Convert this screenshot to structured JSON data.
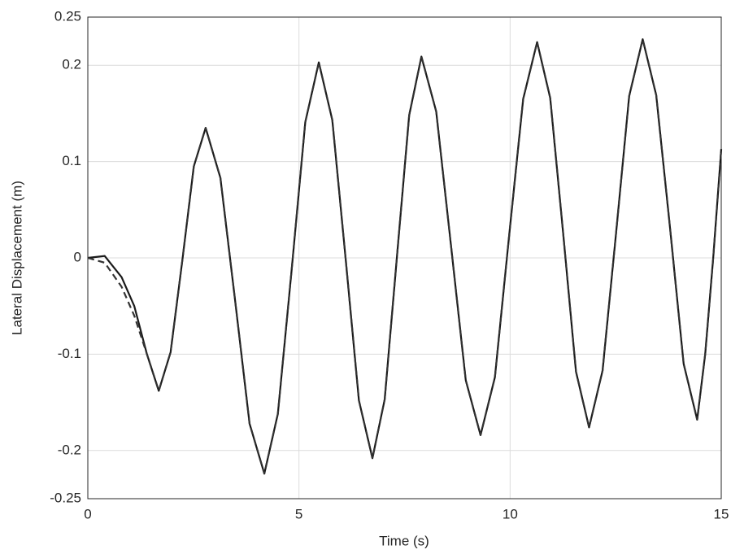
{
  "chart_data": {
    "type": "line",
    "x_label": "Time (s)",
    "y_label": "Lateral Displacement (m)",
    "x": [
      0,
      0.4,
      0.8,
      1.1,
      1.4,
      1.68,
      1.96,
      2.24,
      2.51,
      2.79,
      3.14,
      3.49,
      3.83,
      4.18,
      4.5,
      4.83,
      5.15,
      5.47,
      5.79,
      6.11,
      6.42,
      6.74,
      7.03,
      7.32,
      7.61,
      7.9,
      8.25,
      8.6,
      8.95,
      9.3,
      9.64,
      9.97,
      10.31,
      10.64,
      10.95,
      11.26,
      11.56,
      11.87,
      12.19,
      12.51,
      12.82,
      13.14,
      13.46,
      13.79,
      14.11,
      14.43,
      14.62,
      14.81,
      15
    ],
    "series": [
      {
        "color": "#1a1a1a",
        "dash": false,
        "values": [
          0,
          0.002,
          -0.02,
          -0.05,
          -0.1,
          -0.138,
          -0.098,
          -0.002,
          0.095,
          0.135,
          0.083,
          -0.045,
          -0.172,
          -0.224,
          -0.162,
          -0.011,
          0.141,
          0.203,
          0.143,
          -0.003,
          -0.148,
          -0.208,
          -0.147,
          0.001,
          0.148,
          0.209,
          0.152,
          0.013,
          -0.127,
          -0.184,
          -0.124,
          0.02,
          0.165,
          0.224,
          0.166,
          0.024,
          -0.118,
          -0.176,
          -0.117,
          0.026,
          0.168,
          0.227,
          0.169,
          0.03,
          -0.11,
          -0.168,
          -0.1,
          0,
          0.113
        ]
      },
      {
        "color": "#333333",
        "dash": true,
        "values": [
          0,
          -0.005,
          -0.03,
          -0.06,
          -0.1,
          -0.138,
          -0.098,
          -0.002,
          0.095,
          0.135,
          0.083,
          -0.045,
          -0.172,
          -0.224,
          -0.162,
          -0.011,
          0.141,
          0.203,
          0.143,
          -0.003,
          -0.148,
          -0.208,
          -0.147,
          0.001,
          0.148,
          0.209,
          0.152,
          0.013,
          -0.127,
          -0.184,
          -0.124,
          0.02,
          0.165,
          0.224,
          0.166,
          0.024,
          -0.118,
          -0.176,
          -0.117,
          0.026,
          0.168,
          0.227,
          0.169,
          0.03,
          -0.11,
          -0.168,
          -0.1,
          0,
          0.113
        ]
      }
    ],
    "xlim": [
      0,
      15
    ],
    "xticks": [
      0,
      5,
      10,
      15
    ],
    "ylim": [
      -0.25,
      0.25
    ],
    "yticks": [
      -0.25,
      -0.2,
      -0.1,
      0,
      0.1,
      0.2,
      0.25
    ],
    "grid": true
  }
}
